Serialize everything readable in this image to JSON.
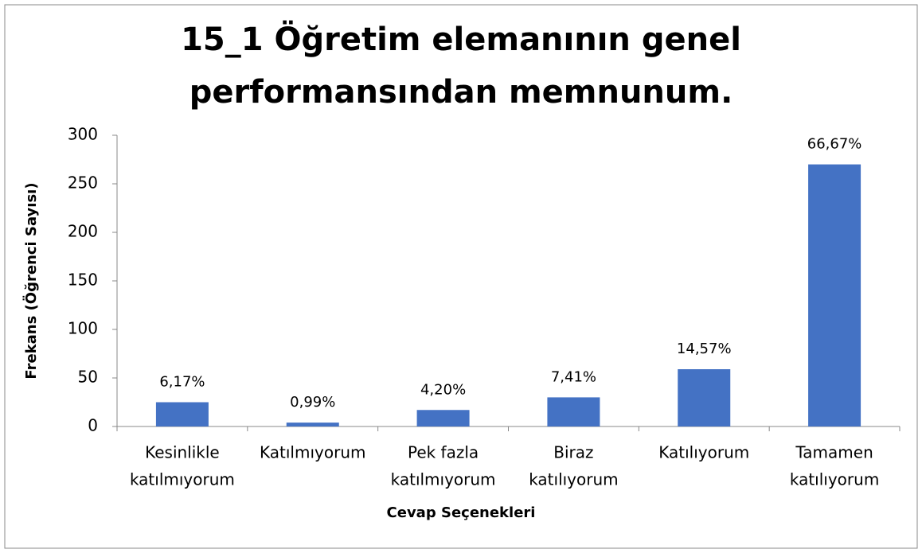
{
  "chart_data": {
    "type": "bar",
    "title": [
      "15_1 Öğretim elemanının genel",
      "performansından memnunum."
    ],
    "x_label": "Cevap Seçenekleri",
    "y_label": "Frekans (Öğrenci Sayısı)",
    "categories": [
      [
        "Kesinlikle",
        "katılmıyorum"
      ],
      [
        "Katılmıyorum"
      ],
      [
        "Pek fazla",
        "katılmıyorum"
      ],
      [
        "Biraz",
        "katılıyorum"
      ],
      [
        "Katılıyorum"
      ],
      [
        "Tamamen",
        "katılıyorum"
      ]
    ],
    "values": [
      25,
      4,
      17,
      30,
      59,
      270
    ],
    "annotations": [
      "6,17%",
      "0,99%",
      "4,20%",
      "7,41%",
      "14,57%",
      "66,67%"
    ],
    "color": "#4472c4",
    "ylim": [
      0,
      300
    ],
    "yticks": [
      0,
      50,
      100,
      150,
      200,
      250,
      300
    ],
    "grid": false
  }
}
